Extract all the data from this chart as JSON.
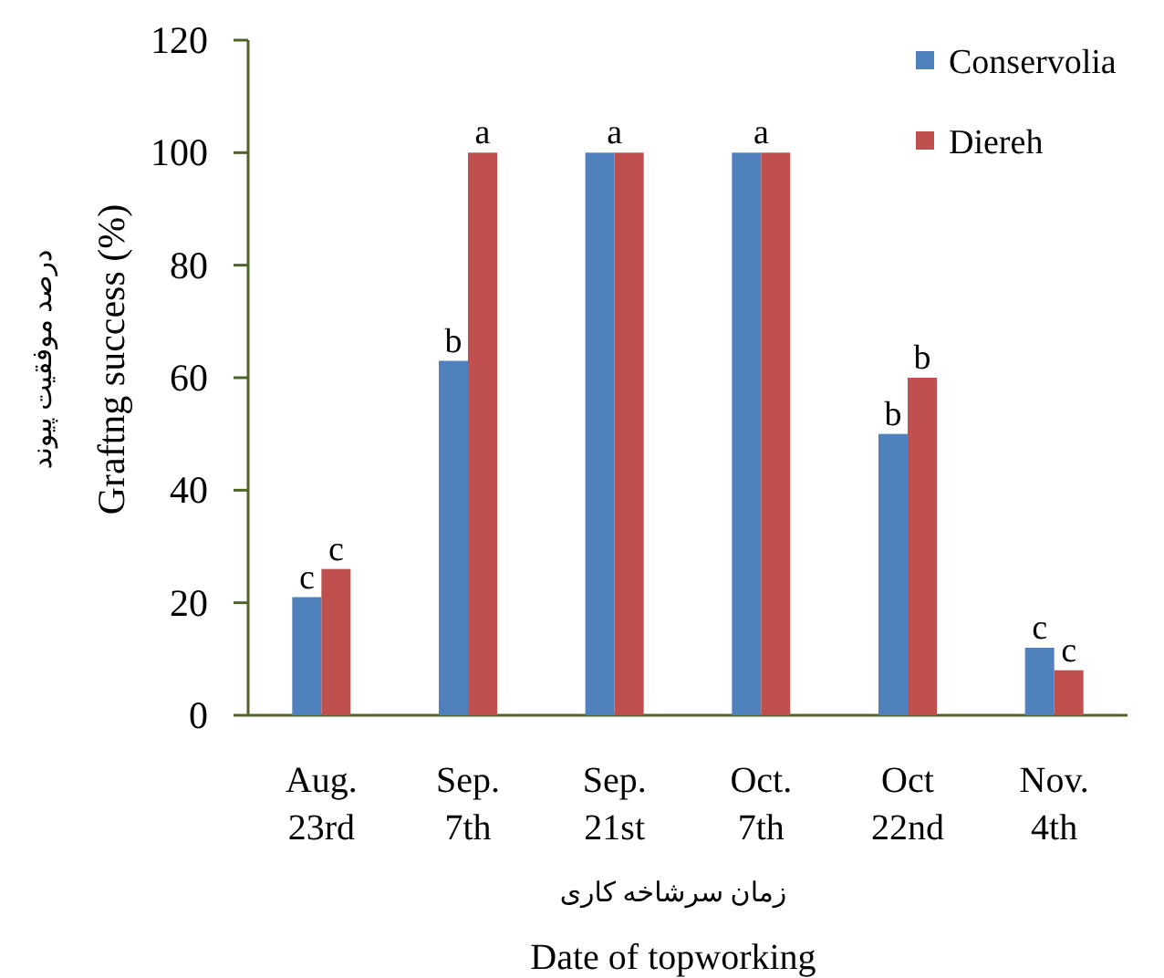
{
  "chart_data": {
    "type": "bar",
    "categories": [
      "Aug.\n23rd",
      "Sep.\n7th",
      "Sep.\n21st",
      "Oct.\n7th",
      "Oct\n22nd",
      "Nov.\n4th"
    ],
    "series": [
      {
        "name": "Conservolia",
        "color": "#4f81bd",
        "values": [
          21,
          63,
          100,
          100,
          50,
          12
        ],
        "value_labels": [
          "c",
          "b",
          null,
          null,
          "b",
          "c"
        ]
      },
      {
        "name": "Diereh",
        "color": "#c0504d",
        "values": [
          26,
          100,
          100,
          100,
          60,
          8
        ],
        "value_labels": [
          "c",
          "a",
          null,
          null,
          "b",
          "c"
        ]
      }
    ],
    "ylim": [
      0,
      120
    ],
    "yticks": [
      0,
      20,
      40,
      60,
      80,
      100,
      120
    ],
    "ylabel": "درصد موفقیت پیوند\nGraftng success (%)",
    "xlabel": "زمان سرشاخه کاری\nDate of topworking",
    "annotations": [
      {
        "text": "a",
        "x": "Sep.\n21st",
        "y": 100
      },
      {
        "text": "a",
        "x": "Oct.\n7th",
        "y": 100
      }
    ],
    "legend": "top right"
  }
}
